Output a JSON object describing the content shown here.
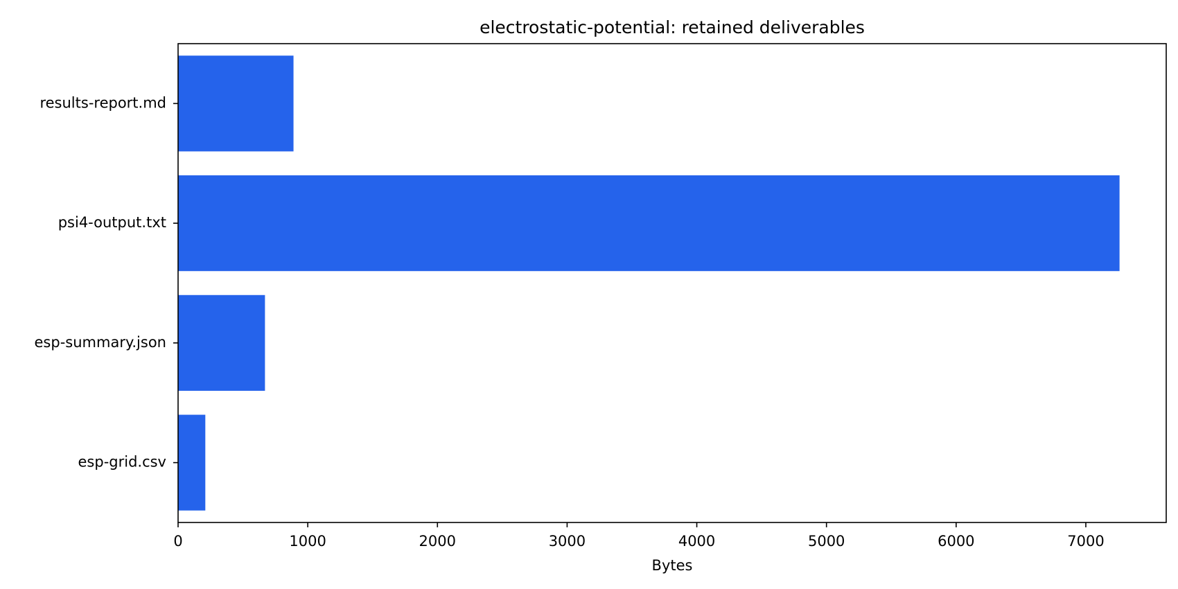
{
  "chart_data": {
    "type": "bar",
    "orientation": "horizontal",
    "title": "electrostatic-potential: retained deliverables",
    "xlabel": "Bytes",
    "ylabel": "",
    "categories": [
      "results-report.md",
      "psi4-output.txt",
      "esp-summary.json",
      "esp-grid.csv"
    ],
    "values": [
      890,
      7260,
      670,
      210
    ],
    "xlim": [
      0,
      7620
    ],
    "xticks": [
      0,
      1000,
      2000,
      3000,
      4000,
      5000,
      6000,
      7000
    ],
    "xtick_labels": [
      "0",
      "1000",
      "2000",
      "3000",
      "4000",
      "5000",
      "6000",
      "7000"
    ],
    "bar_color": "#2563eb",
    "grid": false,
    "legend": "none"
  }
}
